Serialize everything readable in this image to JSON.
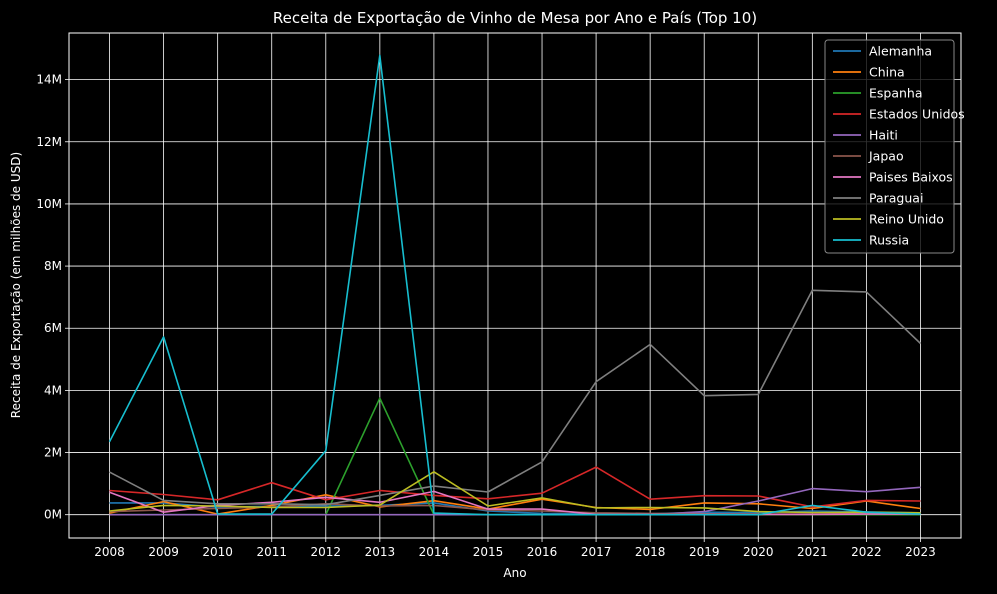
{
  "chart_data": {
    "type": "line",
    "title": "Receita de Exportação de Vinho de Mesa por Ano e País (Top 10)",
    "xlabel": "Ano",
    "ylabel": "Receita de Exportação (em milhões de USD)",
    "x": [
      2008,
      2009,
      2010,
      2011,
      2012,
      2013,
      2014,
      2015,
      2016,
      2017,
      2018,
      2019,
      2020,
      2021,
      2022,
      2023
    ],
    "x_tick_labels": [
      "2008",
      "2009",
      "2010",
      "2011",
      "2012",
      "2013",
      "2014",
      "2015",
      "2016",
      "2017",
      "2018",
      "2019",
      "2020",
      "2021",
      "2022",
      "2023"
    ],
    "y_ticks": [
      0,
      2000000,
      4000000,
      6000000,
      8000000,
      10000000,
      12000000,
      14000000
    ],
    "y_tick_labels": [
      "0M",
      "2M",
      "4M",
      "6M",
      "8M",
      "10M",
      "12M",
      "14M"
    ],
    "ylim": [
      -750000,
      15500000
    ],
    "grid": true,
    "legend_position": "top-right",
    "series": [
      {
        "name": "Alemanha",
        "color": "#1f77b4",
        "values": [
          380000,
          380000,
          240000,
          270000,
          280000,
          300000,
          380000,
          120000,
          40000,
          20000,
          30000,
          80000,
          70000,
          120000,
          90000,
          60000
        ]
      },
      {
        "name": "China",
        "color": "#ff7f0e",
        "values": [
          50000,
          420000,
          20000,
          300000,
          640000,
          250000,
          450000,
          180000,
          500000,
          230000,
          170000,
          380000,
          350000,
          200000,
          440000,
          200000
        ]
      },
      {
        "name": "Espanha",
        "color": "#2ca02c",
        "values": [
          0,
          0,
          0,
          0,
          0,
          3750000,
          0,
          0,
          0,
          0,
          0,
          0,
          0,
          0,
          0,
          0
        ]
      },
      {
        "name": "Estados Unidos",
        "color": "#d62728",
        "values": [
          780000,
          650000,
          480000,
          1030000,
          480000,
          780000,
          620000,
          510000,
          690000,
          1530000,
          500000,
          610000,
          600000,
          250000,
          460000,
          440000
        ]
      },
      {
        "name": "Haiti",
        "color": "#9467bd",
        "values": [
          0,
          0,
          0,
          0,
          0,
          0,
          0,
          0,
          0,
          0,
          0,
          100000,
          440000,
          840000,
          740000,
          880000
        ]
      },
      {
        "name": "Japao",
        "color": "#8c564b",
        "values": [
          100000,
          150000,
          200000,
          250000,
          350000,
          280000,
          300000,
          150000,
          120000,
          60000,
          40000,
          30000,
          20000,
          20000,
          40000,
          50000
        ]
      },
      {
        "name": "Paises Baixos",
        "color": "#e377c2",
        "values": [
          720000,
          80000,
          300000,
          400000,
          560000,
          400000,
          750000,
          180000,
          180000,
          10000,
          10000,
          10000,
          10000,
          10000,
          20000,
          20000
        ]
      },
      {
        "name": "Paraguai",
        "color": "#7f7f7f",
        "values": [
          1370000,
          460000,
          350000,
          350000,
          320000,
          620000,
          920000,
          730000,
          1700000,
          4280000,
          5480000,
          3830000,
          3870000,
          7220000,
          7170000,
          5510000
        ]
      },
      {
        "name": "Reino Unido",
        "color": "#bcbd22",
        "values": [
          120000,
          300000,
          280000,
          230000,
          230000,
          310000,
          1380000,
          280000,
          540000,
          220000,
          230000,
          220000,
          100000,
          70000,
          80000,
          60000
        ]
      },
      {
        "name": "Russia",
        "color": "#17becf",
        "values": [
          2350000,
          5720000,
          20000,
          20000,
          2060000,
          14780000,
          50000,
          0,
          0,
          0,
          0,
          0,
          0,
          300000,
          80000,
          20000
        ]
      }
    ]
  }
}
